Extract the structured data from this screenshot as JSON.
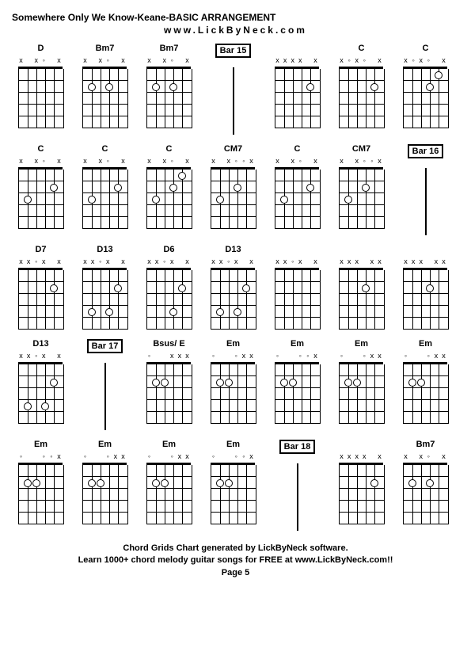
{
  "title": "Somewhere Only We Know-Keane-BASIC ARRANGEMENT",
  "url": "www.LickByNeck.com",
  "footer_line1": "Chord Grids Chart generated by LickByNeck software.",
  "footer_line2": "Learn 1000+ chord melody guitar songs for FREE at www.LickByNeck.com!!",
  "page": "Page 5",
  "frets": 5,
  "strings": 6,
  "cells": [
    {
      "type": "chord",
      "name": "D",
      "markers": [
        "x",
        "",
        "x",
        "◦",
        "",
        "x"
      ],
      "dots": []
    },
    {
      "type": "chord",
      "name": "Bm7",
      "markers": [
        "x",
        "",
        "x",
        "◦",
        "",
        "x"
      ],
      "dots": [
        [
          1,
          2
        ],
        [
          3,
          2
        ]
      ]
    },
    {
      "type": "chord",
      "name": "Bm7",
      "markers": [
        "x",
        "",
        "x",
        "◦",
        "",
        "x"
      ],
      "dots": [
        [
          1,
          2
        ],
        [
          3,
          2
        ]
      ]
    },
    {
      "type": "bar",
      "label": "Bar 15"
    },
    {
      "type": "chord",
      "name": "",
      "markers": [
        "x",
        "x",
        "x",
        "x",
        "",
        "x"
      ],
      "dots": [
        [
          4,
          2
        ]
      ]
    },
    {
      "type": "chord",
      "name": "C",
      "markers": [
        "x",
        "◦",
        "x",
        "◦",
        "",
        "x"
      ],
      "dots": [
        [
          4,
          2
        ]
      ]
    },
    {
      "type": "chord",
      "name": "C",
      "markers": [
        "x",
        "◦",
        "x",
        "◦",
        "",
        "x"
      ],
      "dots": [
        [
          4,
          1
        ],
        [
          3,
          2
        ]
      ]
    },
    {
      "type": "chord",
      "name": "C",
      "markers": [
        "x",
        "",
        "x",
        "◦",
        "",
        "x"
      ],
      "dots": [
        [
          1,
          3
        ],
        [
          4,
          2
        ]
      ]
    },
    {
      "type": "chord",
      "name": "C",
      "markers": [
        "x",
        "",
        "x",
        "◦",
        "",
        "x"
      ],
      "dots": [
        [
          1,
          3
        ],
        [
          4,
          2
        ]
      ]
    },
    {
      "type": "chord",
      "name": "C",
      "markers": [
        "x",
        "",
        "x",
        "◦",
        "",
        "x"
      ],
      "dots": [
        [
          1,
          3
        ],
        [
          3,
          2
        ],
        [
          4,
          1
        ]
      ]
    },
    {
      "type": "chord",
      "name": "CM7",
      "markers": [
        "x",
        "",
        "x",
        "◦",
        "◦",
        "x"
      ],
      "dots": [
        [
          1,
          3
        ],
        [
          3,
          2
        ]
      ]
    },
    {
      "type": "chord",
      "name": "C",
      "markers": [
        "x",
        "",
        "x",
        "◦",
        "",
        "x"
      ],
      "dots": [
        [
          1,
          3
        ],
        [
          4,
          2
        ]
      ]
    },
    {
      "type": "chord",
      "name": "CM7",
      "markers": [
        "x",
        "",
        "x",
        "◦",
        "◦",
        "x"
      ],
      "dots": [
        [
          1,
          3
        ],
        [
          3,
          2
        ]
      ]
    },
    {
      "type": "bar",
      "label": "Bar 16"
    },
    {
      "type": "chord",
      "name": "D7",
      "markers": [
        "x",
        "x",
        "◦",
        "x",
        "",
        "x"
      ],
      "dots": [
        [
          4,
          2
        ]
      ]
    },
    {
      "type": "chord",
      "name": "D13",
      "markers": [
        "x",
        "x",
        "◦",
        "x",
        "",
        "x"
      ],
      "dots": [
        [
          1,
          4
        ],
        [
          3,
          4
        ],
        [
          4,
          2
        ]
      ]
    },
    {
      "type": "chord",
      "name": "D6",
      "markers": [
        "x",
        "x",
        "◦",
        "x",
        "",
        "x"
      ],
      "dots": [
        [
          3,
          4
        ],
        [
          4,
          2
        ]
      ]
    },
    {
      "type": "chord",
      "name": "D13",
      "markers": [
        "x",
        "x",
        "◦",
        "x",
        "",
        "x"
      ],
      "dots": [
        [
          1,
          4
        ],
        [
          3,
          4
        ],
        [
          4,
          2
        ]
      ]
    },
    {
      "type": "chord",
      "name": "",
      "markers": [
        "x",
        "x",
        "◦",
        "x",
        "",
        "x"
      ],
      "dots": []
    },
    {
      "type": "chord",
      "name": "",
      "markers": [
        "x",
        "x",
        "x",
        "",
        "x",
        "x"
      ],
      "dots": [
        [
          3,
          2
        ]
      ]
    },
    {
      "type": "chord",
      "name": "",
      "markers": [
        "x",
        "x",
        "x",
        "",
        "x",
        "x"
      ],
      "dots": [
        [
          3,
          2
        ]
      ]
    },
    {
      "type": "chord",
      "name": "D13",
      "markers": [
        "x",
        "x",
        "◦",
        "x",
        "",
        "x"
      ],
      "dots": [
        [
          1,
          4
        ],
        [
          3,
          4
        ],
        [
          4,
          2
        ]
      ]
    },
    {
      "type": "bar",
      "label": "Bar 17"
    },
    {
      "type": "chord",
      "name": "Bsus/ E",
      "markers": [
        "◦",
        "",
        "",
        "x",
        "x",
        "x"
      ],
      "dots": [
        [
          1,
          2
        ],
        [
          2,
          2
        ]
      ]
    },
    {
      "type": "chord",
      "name": "Em",
      "markers": [
        "◦",
        "",
        "",
        "◦",
        "x",
        "x"
      ],
      "dots": [
        [
          1,
          2
        ],
        [
          2,
          2
        ]
      ]
    },
    {
      "type": "chord",
      "name": "Em",
      "markers": [
        "◦",
        "",
        "",
        "◦",
        "◦",
        "x"
      ],
      "dots": [
        [
          1,
          2
        ],
        [
          2,
          2
        ]
      ]
    },
    {
      "type": "chord",
      "name": "Em",
      "markers": [
        "◦",
        "",
        "",
        "◦",
        "x",
        "x"
      ],
      "dots": [
        [
          1,
          2
        ],
        [
          2,
          2
        ]
      ]
    },
    {
      "type": "chord",
      "name": "Em",
      "markers": [
        "◦",
        "",
        "",
        "◦",
        "x",
        "x"
      ],
      "dots": [
        [
          1,
          2
        ],
        [
          2,
          2
        ]
      ]
    },
    {
      "type": "chord",
      "name": "Em",
      "markers": [
        "◦",
        "",
        "",
        "◦",
        "◦",
        "x"
      ],
      "dots": [
        [
          1,
          2
        ],
        [
          2,
          2
        ]
      ]
    },
    {
      "type": "chord",
      "name": "Em",
      "markers": [
        "◦",
        "",
        "",
        "◦",
        "x",
        "x"
      ],
      "dots": [
        [
          1,
          2
        ],
        [
          2,
          2
        ]
      ]
    },
    {
      "type": "chord",
      "name": "Em",
      "markers": [
        "◦",
        "",
        "",
        "◦",
        "x",
        "x"
      ],
      "dots": [
        [
          1,
          2
        ],
        [
          2,
          2
        ]
      ]
    },
    {
      "type": "chord",
      "name": "Em",
      "markers": [
        "◦",
        "",
        "",
        "◦",
        "◦",
        "x"
      ],
      "dots": [
        [
          1,
          2
        ],
        [
          2,
          2
        ]
      ]
    },
    {
      "type": "bar",
      "label": "Bar 18"
    },
    {
      "type": "chord",
      "name": "",
      "markers": [
        "x",
        "x",
        "x",
        "x",
        "",
        "x"
      ],
      "dots": [
        [
          4,
          2
        ]
      ]
    },
    {
      "type": "chord",
      "name": "Bm7",
      "markers": [
        "x",
        "",
        "x",
        "◦",
        "",
        "x"
      ],
      "dots": [
        [
          1,
          2
        ],
        [
          3,
          2
        ]
      ]
    }
  ],
  "colors": {
    "bg": "#ffffff",
    "line": "#000000"
  }
}
